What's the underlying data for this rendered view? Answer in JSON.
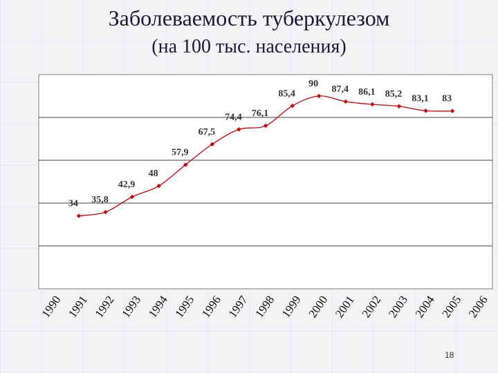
{
  "header": {
    "title": "Заболеваемость туберкулезом",
    "subtitle": "(на 100 тыс. населения)"
  },
  "page_number": "18",
  "chart_data": {
    "type": "line",
    "title": "Заболеваемость туберкулезом",
    "subtitle": "(на 100 тыс. населения)",
    "categories": [
      "1990",
      "1991",
      "1992",
      "1993",
      "1994",
      "1995",
      "1996",
      "1997",
      "1998",
      "1999",
      "2000",
      "2001",
      "2002",
      "2003",
      "2004",
      "2005",
      "2006"
    ],
    "series": [
      {
        "values": [
          null,
          34,
          35.8,
          42.9,
          48,
          57.9,
          67.5,
          74.4,
          76.1,
          85.4,
          90,
          87.4,
          86.1,
          85.2,
          83.1,
          83,
          null
        ],
        "labels": [
          "",
          "34",
          "35,8",
          "42,9",
          "48",
          "57,9",
          "67,5",
          "74,4",
          "76,1",
          "85,4",
          "90",
          "87,4",
          "86,1",
          "85,2",
          "83,1",
          "83",
          ""
        ]
      }
    ],
    "ylim": [
      0,
      100
    ],
    "grid": true,
    "legend": "none",
    "colors": {
      "line": "#cc0000",
      "marker": "#cc0000",
      "grid": "#000000",
      "label": "#333333"
    }
  }
}
